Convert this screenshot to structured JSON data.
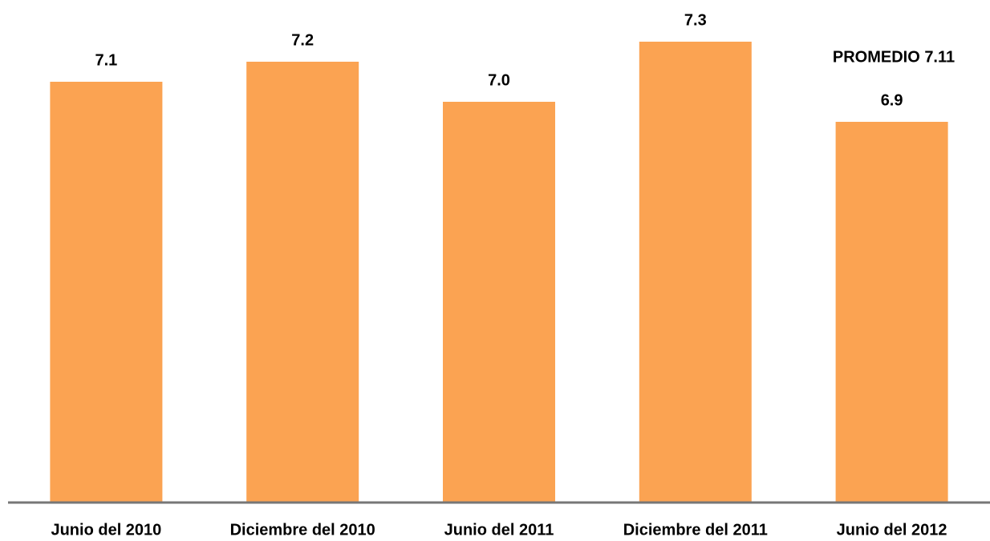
{
  "chart_data": {
    "type": "bar",
    "categories": [
      "Junio del 2010",
      "Diciembre del 2010",
      "Junio del 2011",
      "Diciembre del 2011",
      "Junio del 2012"
    ],
    "values": [
      7.1,
      7.2,
      7.0,
      7.3,
      6.9
    ],
    "value_labels": [
      "7.1",
      "7.2",
      "7.0",
      "7.3",
      "6.9"
    ],
    "color": "#fba352",
    "ylim": [
      5,
      7.5
    ],
    "annotation": "PROMEDIO 7.11"
  }
}
